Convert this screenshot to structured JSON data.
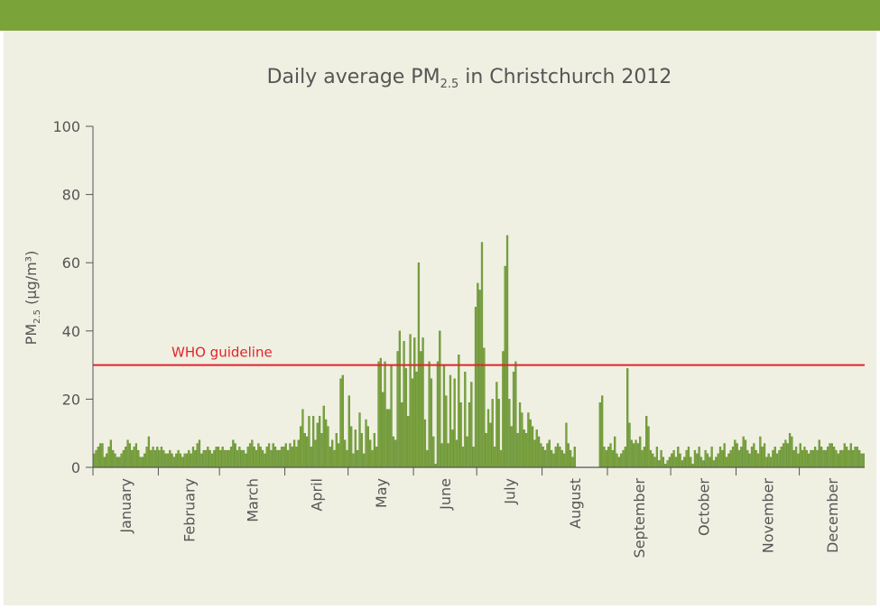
{
  "chart_data": {
    "type": "bar",
    "title": {
      "main": "Daily average PM",
      "sub": "2.5",
      "rest": " in Christchurch 2012"
    },
    "y_label": {
      "main": "PM",
      "sub": "2.5",
      "rest": " (µg/m³)"
    },
    "categories": [
      "January",
      "February",
      "March",
      "April",
      "May",
      "June",
      "July",
      "August",
      "September",
      "October",
      "November",
      "December"
    ],
    "values": [
      [
        4,
        5,
        6,
        7,
        7,
        3,
        4,
        6,
        8,
        5,
        4,
        3,
        3,
        4,
        5,
        6,
        8,
        7,
        5,
        6,
        7,
        5,
        3,
        3,
        4,
        6,
        9,
        5,
        6,
        5,
        6
      ],
      [
        5,
        6,
        5,
        4,
        4,
        5,
        4,
        3,
        4,
        5,
        4,
        3,
        4,
        4,
        5,
        4,
        6,
        5,
        7,
        8,
        4,
        5,
        5,
        6,
        5,
        4,
        5,
        6,
        6
      ],
      [
        5,
        6,
        5,
        5,
        5,
        6,
        8,
        7,
        5,
        6,
        5,
        5,
        4,
        6,
        7,
        8,
        6,
        5,
        7,
        6,
        5,
        4,
        6,
        7,
        5,
        7,
        6,
        5,
        5,
        6,
        6
      ],
      [
        7,
        5,
        7,
        6,
        8,
        6,
        8,
        12,
        17,
        10,
        9,
        15,
        6,
        15,
        8,
        13,
        15,
        10,
        18,
        14,
        12,
        6,
        8,
        5,
        10,
        7,
        26,
        27,
        8,
        5
      ],
      [
        21,
        12,
        4,
        11,
        5,
        16,
        10,
        4,
        14,
        12,
        8,
        5,
        10,
        6,
        31,
        32,
        22,
        31,
        17,
        17,
        30,
        9,
        8,
        34,
        40,
        19,
        37,
        29,
        15,
        39,
        26
      ],
      [
        38,
        28,
        60,
        34,
        38,
        14,
        5,
        31,
        26,
        9,
        1,
        31,
        40,
        7,
        30,
        21,
        7,
        27,
        11,
        26,
        8,
        33,
        19,
        6,
        28,
        9,
        19,
        25,
        6,
        47
      ],
      [
        54,
        52,
        66,
        35,
        10,
        17,
        13,
        20,
        6,
        25,
        20,
        5,
        34,
        59,
        68,
        20,
        12,
        28,
        31,
        10,
        19,
        16,
        11,
        10,
        16,
        14,
        12,
        8,
        11,
        9,
        7
      ],
      [
        6,
        5,
        7,
        8,
        5,
        4,
        6,
        7,
        6,
        5,
        4,
        13,
        7,
        5,
        3,
        6,
        null,
        null,
        null,
        null,
        null,
        null,
        null,
        null,
        null,
        null,
        null,
        19,
        21,
        6,
        5
      ],
      [
        6,
        7,
        5,
        9,
        4,
        3,
        4,
        5,
        6,
        29,
        13,
        8,
        7,
        8,
        7,
        9,
        5,
        6,
        15,
        12,
        5,
        4,
        3,
        6,
        2,
        5,
        3,
        1,
        2,
        3
      ],
      [
        4,
        5,
        3,
        6,
        4,
        2,
        3,
        5,
        6,
        3,
        1,
        5,
        4,
        6,
        3,
        2,
        5,
        4,
        3,
        6,
        2,
        3,
        4,
        6,
        5,
        7,
        3,
        4,
        5,
        6,
        8
      ],
      [
        7,
        5,
        6,
        9,
        8,
        5,
        4,
        6,
        7,
        5,
        4,
        9,
        6,
        7,
        3,
        4,
        3,
        5,
        6,
        4,
        5,
        6,
        7,
        8,
        7,
        10,
        9,
        5,
        6,
        4
      ],
      [
        7,
        5,
        6,
        5,
        4,
        5,
        5,
        6,
        5,
        8,
        6,
        5,
        5,
        6,
        7,
        7,
        6,
        5,
        4,
        5,
        5,
        7,
        6,
        5,
        7,
        5,
        6,
        6,
        5,
        4,
        4
      ]
    ],
    "color": "#7ba23f",
    "ylim": [
      0,
      100
    ],
    "yticks": [
      0,
      20,
      40,
      60,
      80,
      100
    ],
    "reference_line": {
      "value": 30,
      "label": "WHO guideline",
      "color": "#e3232a"
    }
  }
}
